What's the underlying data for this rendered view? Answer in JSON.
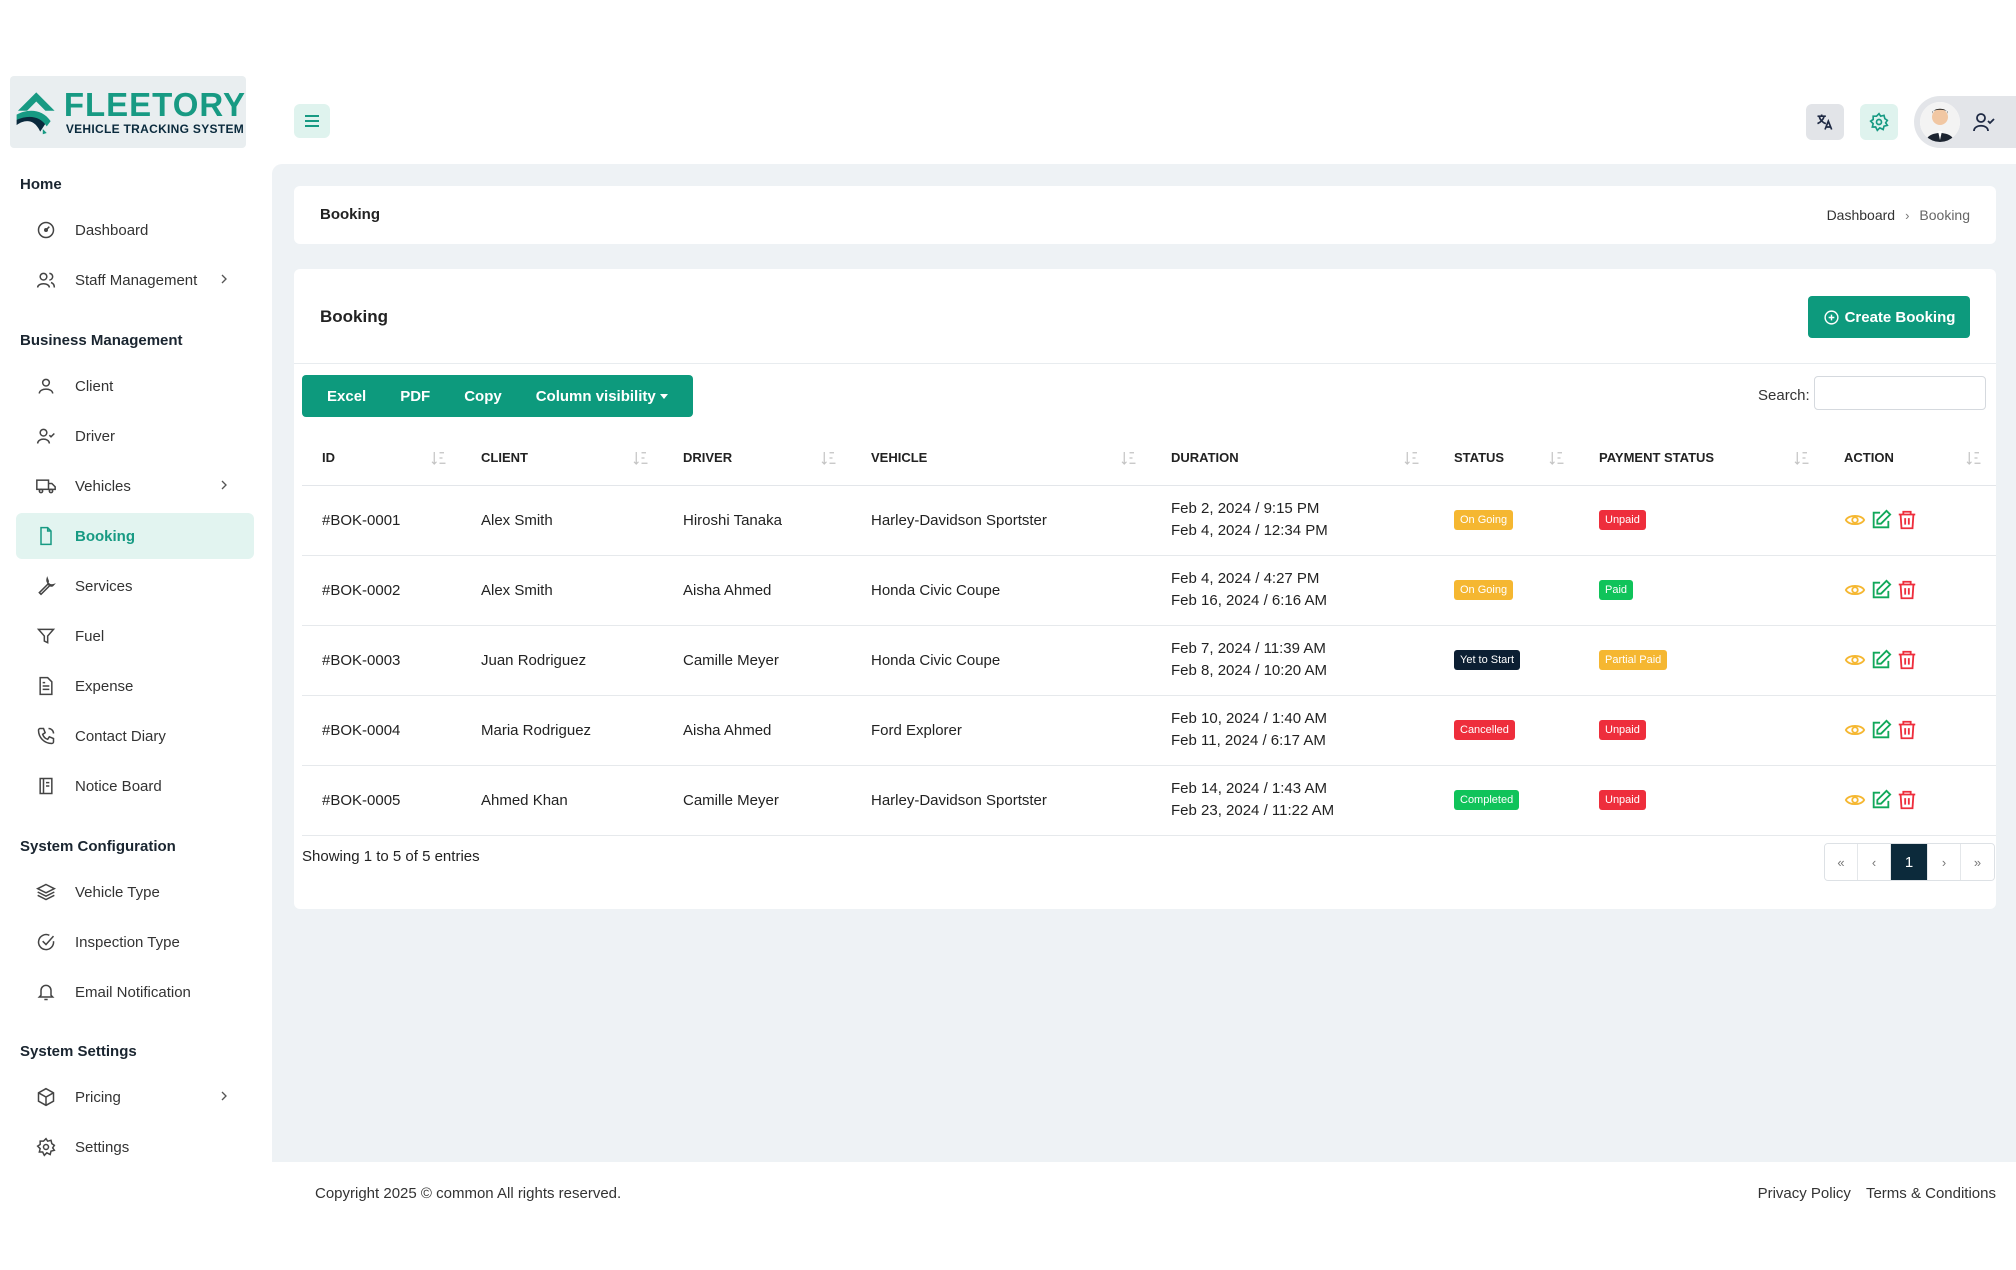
{
  "brand": {
    "name": "FLEETORY",
    "tagline": "VEHICLE TRACKING SYSTEM"
  },
  "sidebar": {
    "sections": [
      {
        "title": "Home",
        "items": [
          {
            "label": "Dashboard",
            "icon": "dashboard-icon"
          },
          {
            "label": "Staff Management",
            "icon": "users-icon",
            "expandable": true
          }
        ]
      },
      {
        "title": "Business Management",
        "items": [
          {
            "label": "Client",
            "icon": "user-icon"
          },
          {
            "label": "Driver",
            "icon": "user-check-icon"
          },
          {
            "label": "Vehicles",
            "icon": "truck-icon",
            "expandable": true
          },
          {
            "label": "Booking",
            "icon": "file-icon",
            "active": true
          },
          {
            "label": "Services",
            "icon": "wrench-icon"
          },
          {
            "label": "Fuel",
            "icon": "filter-icon"
          },
          {
            "label": "Expense",
            "icon": "document-icon"
          },
          {
            "label": "Contact Diary",
            "icon": "phone-icon"
          },
          {
            "label": "Notice Board",
            "icon": "notebook-icon"
          }
        ]
      },
      {
        "title": "System Configuration",
        "items": [
          {
            "label": "Vehicle Type",
            "icon": "layers-icon"
          },
          {
            "label": "Inspection Type",
            "icon": "check-circle-icon"
          },
          {
            "label": "Email Notification",
            "icon": "bell-icon"
          }
        ]
      },
      {
        "title": "System Settings",
        "items": [
          {
            "label": "Pricing",
            "icon": "box-icon",
            "expandable": true
          },
          {
            "label": "Settings",
            "icon": "gear-icon"
          }
        ]
      }
    ]
  },
  "breadcrumb": {
    "title": "Booking",
    "home": "Dashboard",
    "current": "Booking"
  },
  "card": {
    "title": "Booking",
    "create_label": "Create Booking"
  },
  "toolbar": {
    "excel": "Excel",
    "pdf": "PDF",
    "copy": "Copy",
    "columns": "Column visibility",
    "search_label": "Search:"
  },
  "table": {
    "columns": [
      "ID",
      "CLIENT",
      "DRIVER",
      "VEHICLE",
      "DURATION",
      "STATUS",
      "PAYMENT STATUS",
      "ACTION"
    ],
    "rows": [
      {
        "id": "#BOK-0001",
        "client": "Alex Smith",
        "driver": "Hiroshi Tanaka",
        "vehicle": "Harley-Davidson Sportster",
        "start": "Feb 2, 2024 / 9:15 PM",
        "end": "Feb 4, 2024 / 12:34 PM",
        "status": "On Going",
        "status_color": "#f5b731",
        "payment": "Unpaid",
        "payment_color": "#ee2e3c"
      },
      {
        "id": "#BOK-0002",
        "client": "Alex Smith",
        "driver": "Aisha Ahmed",
        "vehicle": "Honda Civic Coupe",
        "start": "Feb 4, 2024 / 4:27 PM",
        "end": "Feb 16, 2024 / 6:16 AM",
        "status": "On Going",
        "status_color": "#f5b731",
        "payment": "Paid",
        "payment_color": "#10c35a"
      },
      {
        "id": "#BOK-0003",
        "client": "Juan Rodriguez",
        "driver": "Camille Meyer",
        "vehicle": "Honda Civic Coupe",
        "start": "Feb 7, 2024 / 11:39 AM",
        "end": "Feb 8, 2024 / 10:20 AM",
        "status": "Yet to Start",
        "status_color": "#0c1f33",
        "payment": "Partial Paid",
        "payment_color": "#f5b731"
      },
      {
        "id": "#BOK-0004",
        "client": "Maria Rodriguez",
        "driver": "Aisha Ahmed",
        "vehicle": "Ford Explorer",
        "start": "Feb 10, 2024 / 1:40 AM",
        "end": "Feb 11, 2024 / 6:17 AM",
        "status": "Cancelled",
        "status_color": "#ee2e3c",
        "payment": "Unpaid",
        "payment_color": "#ee2e3c"
      },
      {
        "id": "#BOK-0005",
        "client": "Ahmed Khan",
        "driver": "Camille Meyer",
        "vehicle": "Harley-Davidson Sportster",
        "start": "Feb 14, 2024 / 1:43 AM",
        "end": "Feb 23, 2024 / 11:22 AM",
        "status": "Completed",
        "status_color": "#10c35a",
        "payment": "Unpaid",
        "payment_color": "#ee2e3c"
      }
    ]
  },
  "pagination": {
    "info": "Showing 1 to 5 of 5 entries",
    "first": "«",
    "prev": "‹",
    "page": "1",
    "next": "›",
    "last": "»"
  },
  "footer": {
    "copyright": "Copyright 2025 © common All rights reserved.",
    "privacy": "Privacy Policy",
    "terms": "Terms & Conditions"
  },
  "colors": {
    "accent": "#0d9a7d",
    "brand": "#179a83",
    "dark": "#0c2a3b"
  }
}
